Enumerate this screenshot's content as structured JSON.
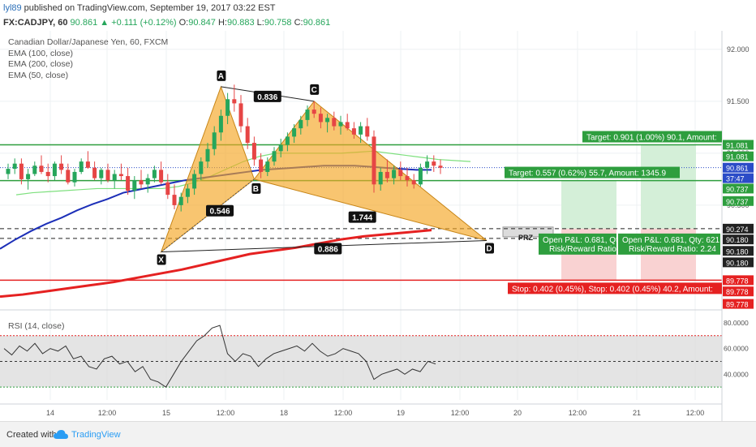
{
  "header": {
    "user": "lyl89",
    "published": " published on TradingView.com, September 19, 2017 03:22 EST",
    "symbol": "FX:CADJPY, 60",
    "price": "90.861",
    "change": "+0.111 (+0.12%)",
    "o_label": "O:",
    "o_val": "90.847",
    "h_label": "H:",
    "h_val": "90.883",
    "l_label": "L:",
    "l_val": "90.758",
    "c_label": "C:",
    "c_val": "90.861"
  },
  "legend": {
    "title": "Canadian Dollar/Japanese Yen, 60, FXCM",
    "ema100": "EMA (100, close)",
    "ema200": "EMA (200, close)",
    "ema50": "EMA (50, close)"
  },
  "rsi_label": "RSI (14, close)",
  "footer": {
    "created_with": "Created with",
    "brand": "TradingView"
  },
  "colors": {
    "up": "#26a65b",
    "down": "#e64545",
    "pattern": "#f5a623",
    "ema50": "#7ee07e",
    "ema100": "#1c2fb8",
    "ema200": "#e52121",
    "target": "#2e9e3e",
    "stop": "#e52121"
  },
  "chart_data": [
    {
      "type": "candlestick",
      "title": "Canadian Dollar/Japanese Yen, 60, FXCM",
      "ylim": [
        89.5,
        92.1
      ],
      "y_ticks": [
        "92.000",
        "91.500",
        "91.000",
        "90.500"
      ],
      "x_ticks": [
        "14",
        "12:00",
        "15",
        "12:00",
        "18",
        "12:00",
        "19",
        "12:00",
        "20",
        "12:00",
        "21",
        "12:00"
      ],
      "candles": [
        [
          90.8,
          90.9,
          90.75,
          90.85
        ],
        [
          90.85,
          90.95,
          90.8,
          90.9
        ],
        [
          90.9,
          90.95,
          90.7,
          90.75
        ],
        [
          90.75,
          90.85,
          90.65,
          90.8
        ],
        [
          90.8,
          90.92,
          90.78,
          90.88
        ],
        [
          90.88,
          90.98,
          90.8,
          90.82
        ],
        [
          90.82,
          90.9,
          90.72,
          90.78
        ],
        [
          90.78,
          90.92,
          90.74,
          90.9
        ],
        [
          90.9,
          90.98,
          90.8,
          90.84
        ],
        [
          90.84,
          90.9,
          90.7,
          90.72
        ],
        [
          90.72,
          90.85,
          90.68,
          90.82
        ],
        [
          90.82,
          90.95,
          90.8,
          90.92
        ],
        [
          90.92,
          91.02,
          90.85,
          90.86
        ],
        [
          90.86,
          90.92,
          90.74,
          90.76
        ],
        [
          90.76,
          90.86,
          90.7,
          90.84
        ],
        [
          90.84,
          90.9,
          90.72,
          90.74
        ],
        [
          90.74,
          90.84,
          90.66,
          90.8
        ],
        [
          90.8,
          90.9,
          90.74,
          90.78
        ],
        [
          90.78,
          90.86,
          90.6,
          90.64
        ],
        [
          90.64,
          90.78,
          90.56,
          90.74
        ],
        [
          90.74,
          90.84,
          90.66,
          90.7
        ],
        [
          90.7,
          90.8,
          90.62,
          90.76
        ],
        [
          90.76,
          90.88,
          90.72,
          90.84
        ],
        [
          90.84,
          90.92,
          90.7,
          90.72
        ],
        [
          90.72,
          90.8,
          90.56,
          90.6
        ],
        [
          90.6,
          90.7,
          90.46,
          90.5
        ],
        [
          90.5,
          90.62,
          90.44,
          90.58
        ],
        [
          90.58,
          90.7,
          90.52,
          90.66
        ],
        [
          90.66,
          90.84,
          90.6,
          90.8
        ],
        [
          90.8,
          90.96,
          90.74,
          90.92
        ],
        [
          90.92,
          91.1,
          90.86,
          91.04
        ],
        [
          91.04,
          91.26,
          90.98,
          91.2
        ],
        [
          91.2,
          91.42,
          91.12,
          91.36
        ],
        [
          91.36,
          91.58,
          91.28,
          91.52
        ],
        [
          91.52,
          91.66,
          91.4,
          91.48
        ],
        [
          91.48,
          91.56,
          91.2,
          91.26
        ],
        [
          91.26,
          91.34,
          91.04,
          91.1
        ],
        [
          91.1,
          91.16,
          90.88,
          90.94
        ],
        [
          90.94,
          91.0,
          90.76,
          90.82
        ],
        [
          90.82,
          90.96,
          90.78,
          90.92
        ],
        [
          90.92,
          91.06,
          90.88,
          91.02
        ],
        [
          91.02,
          91.14,
          90.96,
          91.08
        ],
        [
          91.08,
          91.2,
          91.02,
          91.16
        ],
        [
          91.16,
          91.28,
          91.1,
          91.24
        ],
        [
          91.24,
          91.36,
          91.18,
          91.32
        ],
        [
          91.32,
          91.46,
          91.26,
          91.42
        ],
        [
          91.42,
          91.5,
          91.34,
          91.38
        ],
        [
          91.38,
          91.44,
          91.24,
          91.3
        ],
        [
          91.3,
          91.38,
          91.2,
          91.34
        ],
        [
          91.34,
          91.4,
          91.22,
          91.26
        ],
        [
          91.26,
          91.36,
          91.18,
          91.3
        ],
        [
          91.3,
          91.38,
          91.22,
          91.24
        ],
        [
          91.24,
          91.3,
          91.14,
          91.18
        ],
        [
          91.18,
          91.3,
          91.1,
          91.26
        ],
        [
          91.26,
          91.34,
          91.12,
          91.16
        ],
        [
          91.16,
          91.22,
          90.62,
          90.7
        ],
        [
          90.7,
          90.86,
          90.64,
          90.82
        ],
        [
          90.82,
          90.94,
          90.72,
          90.76
        ],
        [
          90.76,
          90.88,
          90.7,
          90.84
        ],
        [
          90.84,
          90.92,
          90.74,
          90.78
        ],
        [
          90.78,
          90.86,
          90.68,
          90.74
        ],
        [
          90.74,
          90.8,
          90.66,
          90.7
        ],
        [
          90.7,
          90.9,
          90.68,
          90.86
        ],
        [
          90.86,
          90.98,
          90.8,
          90.92
        ],
        [
          90.92,
          90.98,
          90.82,
          90.88
        ],
        [
          90.88,
          90.94,
          90.8,
          90.86
        ]
      ],
      "emas": [
        {
          "name": "EMA (50, close)",
          "values": [
            90.6,
            90.62,
            90.63,
            90.64,
            90.65,
            90.66,
            90.66,
            90.66,
            90.66,
            90.66,
            90.68,
            90.72,
            90.78,
            90.85,
            90.92,
            90.97,
            91.0,
            91.0,
            91.0,
            91.0,
            91.0,
            91.01,
            91.02,
            91.0,
            90.98,
            90.96,
            90.94,
            90.93,
            90.92
          ]
        },
        {
          "name": "EMA (100, close)",
          "values": [
            90.08,
            90.17,
            90.25,
            90.32,
            90.38,
            90.45,
            90.51,
            90.56,
            90.62,
            90.65,
            90.68,
            90.71,
            90.74,
            90.76,
            90.78,
            90.8,
            90.82,
            90.84,
            90.85,
            90.86,
            90.87,
            90.88,
            90.88,
            90.88,
            90.87,
            90.86,
            90.85,
            90.84,
            90.84
          ]
        },
        {
          "name": "EMA (200, close)",
          "values": [
            89.62,
            89.64,
            89.67,
            89.7,
            89.73,
            89.76,
            89.8,
            89.84,
            89.88,
            89.93,
            89.98,
            90.03,
            90.06,
            90.09,
            90.13,
            90.17,
            90.2,
            90.22,
            90.24,
            90.26
          ]
        }
      ],
      "pattern": {
        "points": [
          "X",
          "A",
          "B",
          "C",
          "D"
        ],
        "prices": [
          90.05,
          91.64,
          90.75,
          91.5,
          90.16
        ],
        "ratios": [
          "0.836",
          "0.546",
          "1.744",
          "0.886"
        ],
        "prz_label": "PRZ"
      },
      "levels": [
        {
          "label": "Target: 0.901 (1.00%) 90.1, Amount:",
          "price": 91.081
        },
        {
          "label": "Target: 0.557 (0.62%) 55.7, Amount: 1345.9",
          "price": 90.737
        },
        {
          "label": "Stop: 0.402 (0.45%), Stop: 0.402 (0.45%) 40.2, Amount:",
          "price": 89.778
        }
      ],
      "dashed_levels": [
        90.274,
        90.18
      ],
      "pnl_boxes": [
        {
          "line1": "Open P&L: 0.681, Qty",
          "line2": "Risk/Reward Ratio: "
        },
        {
          "line1": "Open P&L: 0.681, Qty: 621",
          "line2": "Risk/Reward Ratio: 2.24"
        }
      ],
      "price_labels": [
        {
          "text": "91.081",
          "price": 91.081,
          "color": "#2e9e3e"
        },
        {
          "text": "91.081",
          "price": 90.97,
          "color": "#2e9e3e"
        },
        {
          "text": "90.861",
          "price": 90.861,
          "color": "#2b4cc7"
        },
        {
          "text": "37:47",
          "price": 90.76,
          "color": "#2b4cc7"
        },
        {
          "text": "90.737",
          "price": 90.66,
          "color": "#2e9e3e"
        },
        {
          "text": "90.737",
          "price": 90.54,
          "color": "#2e9e3e"
        },
        {
          "text": "90.274",
          "price": 90.274,
          "color": "#222222"
        },
        {
          "text": "90.180",
          "price": 90.17,
          "color": "#222222"
        },
        {
          "text": "90.180",
          "price": 90.06,
          "color": "#222222"
        },
        {
          "text": "90.180",
          "price": 89.95,
          "color": "#222222"
        },
        {
          "text": "89.778",
          "price": 89.778,
          "color": "#e52121"
        },
        {
          "text": "89.778",
          "price": 89.67,
          "color": "#e52121"
        },
        {
          "text": "89.778",
          "price": 89.55,
          "color": "#e52121"
        }
      ]
    },
    {
      "type": "line",
      "title": "RSI (14, close)",
      "ylim": [
        20,
        85
      ],
      "y_ticks": [
        "80.0000",
        "60.0000",
        "40.0000"
      ],
      "overbought": 70,
      "oversold": 30,
      "midline": 50,
      "values": [
        60,
        55,
        62,
        58,
        64,
        56,
        60,
        58,
        62,
        52,
        54,
        46,
        44,
        52,
        54,
        48,
        50,
        42,
        46,
        36,
        34,
        30,
        40,
        50,
        58,
        66,
        70,
        76,
        78,
        56,
        50,
        56,
        54,
        46,
        52,
        56,
        58,
        60,
        62,
        58,
        64,
        58,
        54,
        56,
        60,
        58,
        56,
        50,
        36,
        40,
        42,
        44,
        40,
        44,
        42,
        50,
        48
      ]
    }
  ]
}
